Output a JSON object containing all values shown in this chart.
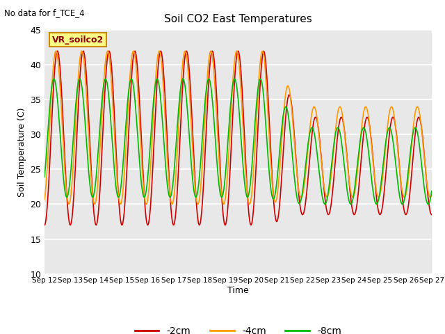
{
  "title": "Soil CO2 East Temperatures",
  "no_data_label": "No data for f_TCE_4",
  "vr_label": "VR_soilco2",
  "xlabel": "Time",
  "ylabel": "Soil Temperature (C)",
  "ylim": [
    10,
    45
  ],
  "yticks": [
    10,
    15,
    20,
    25,
    30,
    35,
    40,
    45
  ],
  "colors": {
    "-2cm": "#cc0000",
    "-4cm": "#ff9900",
    "-8cm": "#00bb00"
  },
  "legend_labels": [
    "-2cm",
    "-4cm",
    "-8cm"
  ],
  "plot_bg": "#e8e8e8"
}
